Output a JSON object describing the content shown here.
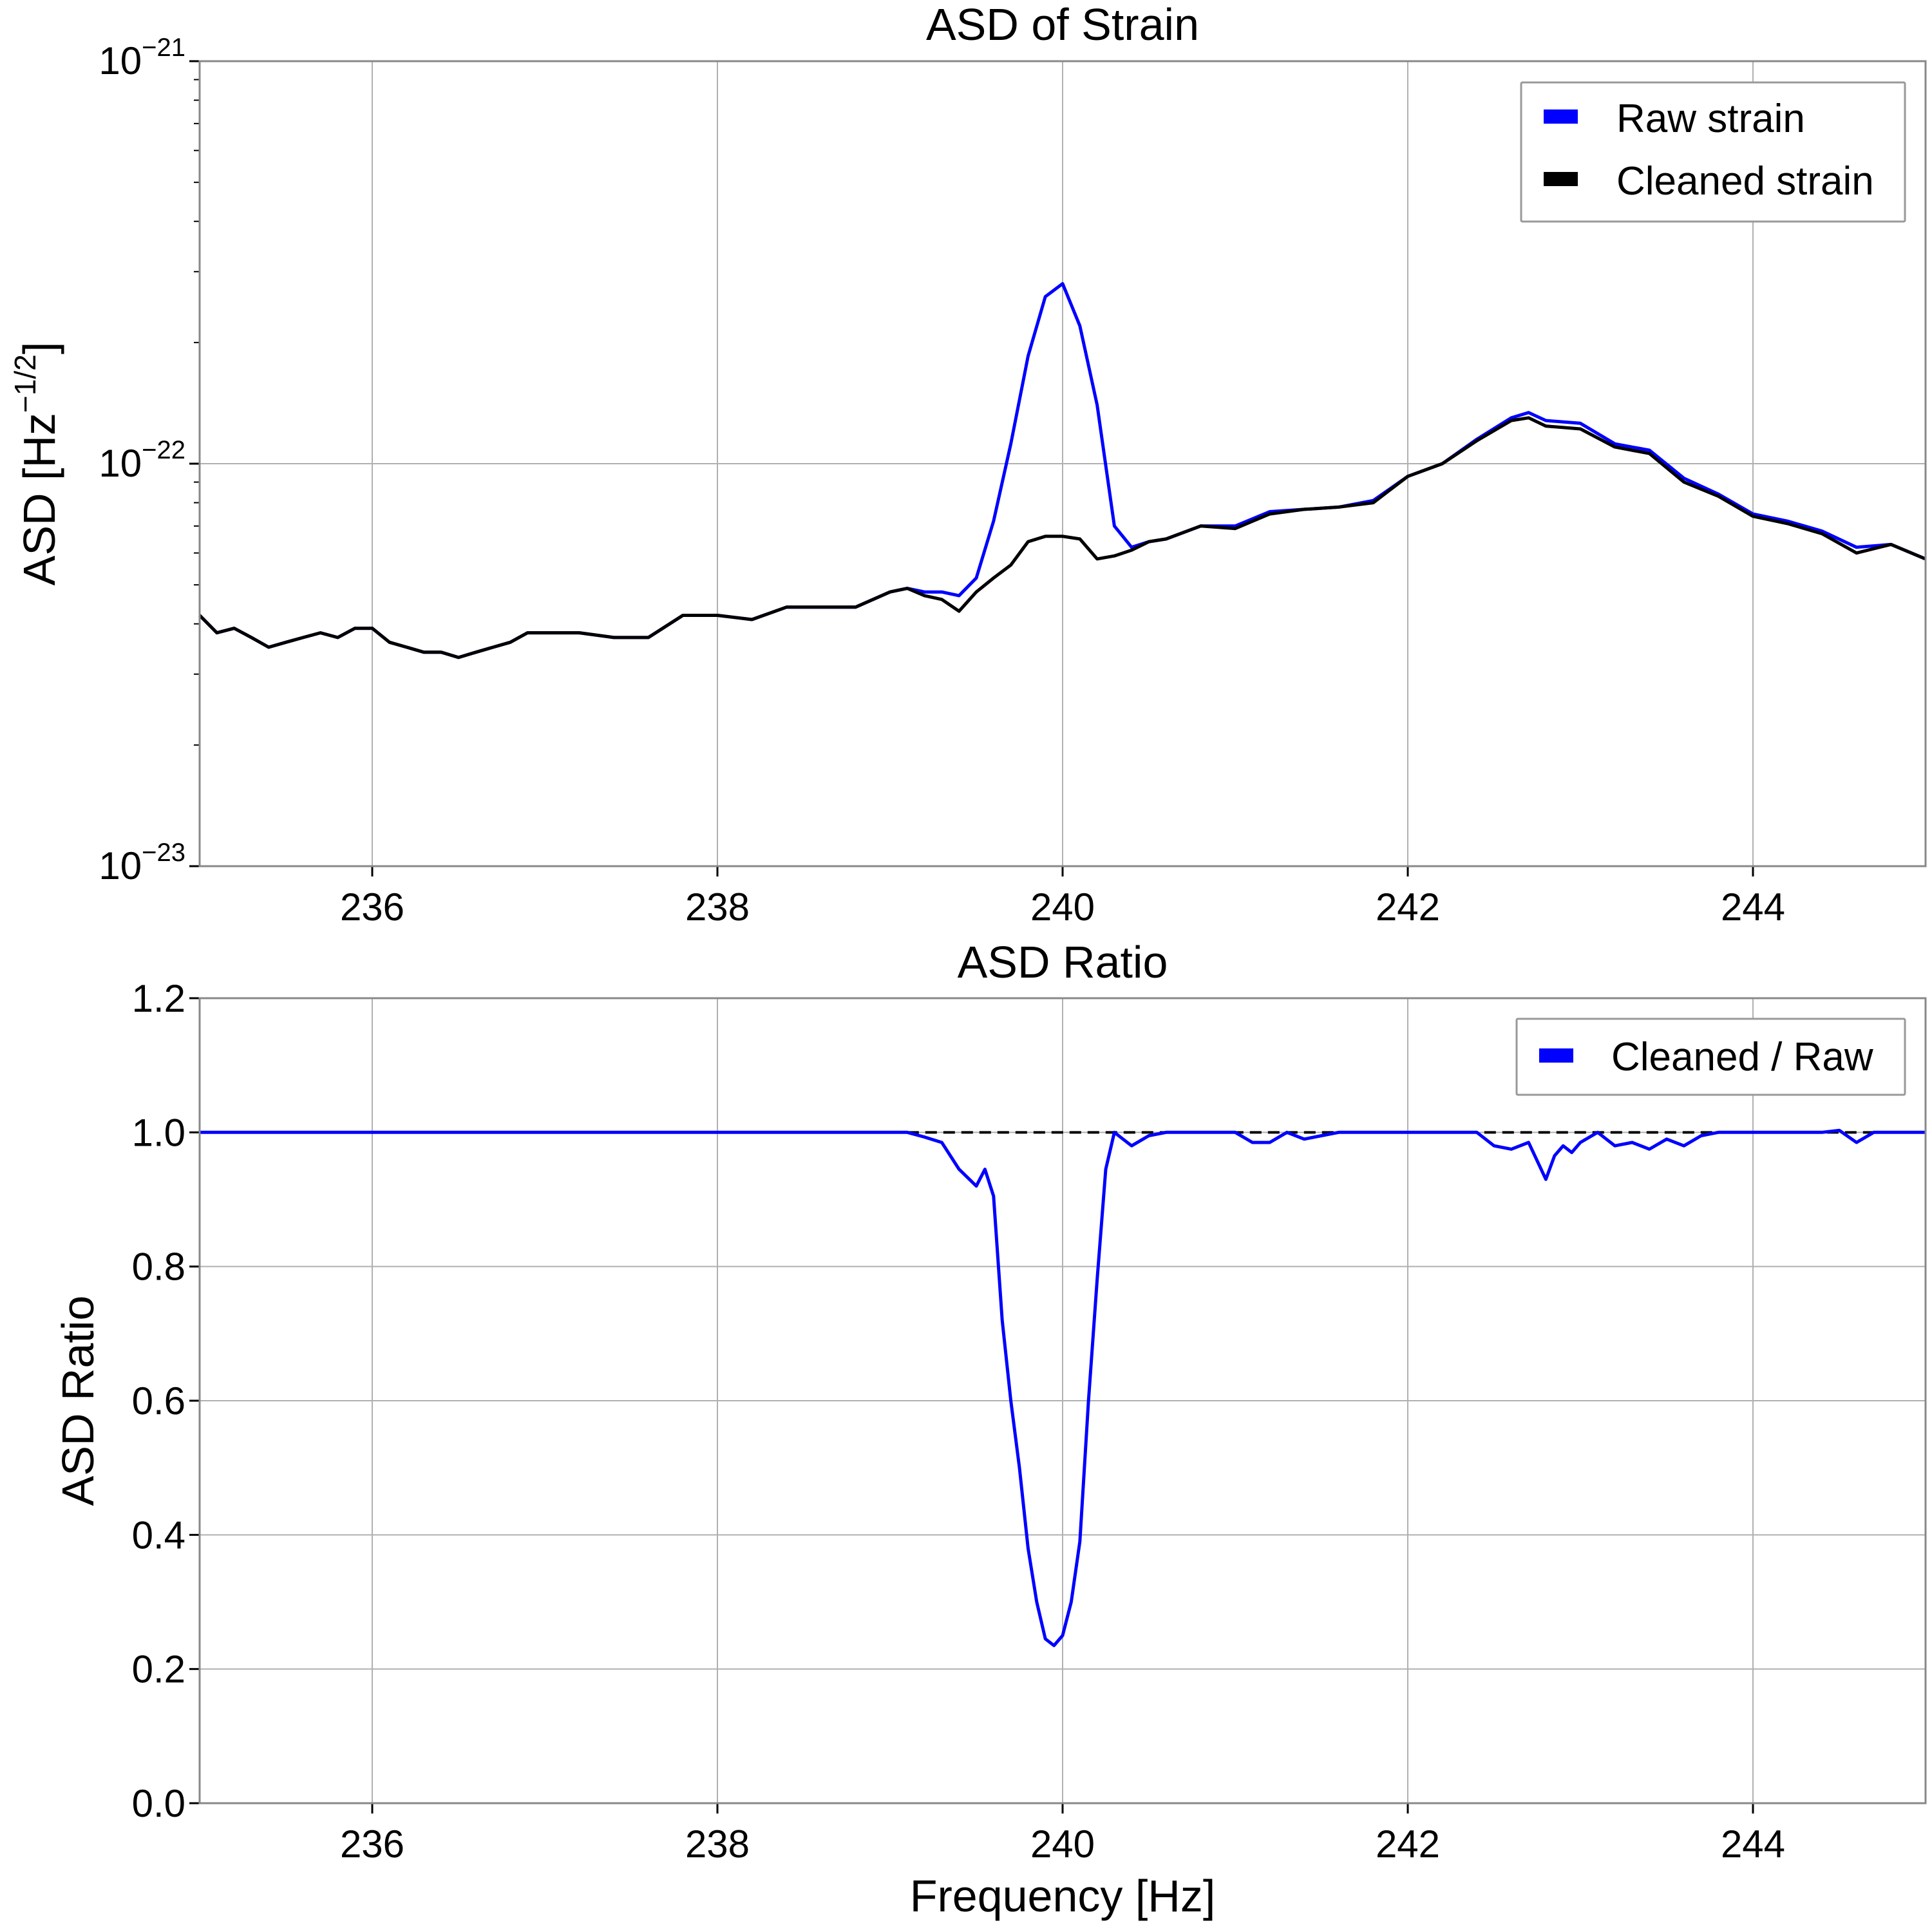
{
  "chart_data": [
    {
      "type": "line",
      "title": "ASD of Strain",
      "xlabel": "",
      "ylabel": "ASD [Hz",
      "ylabel_sup": "−1/2",
      "ylabel_close": "]",
      "xlim": [
        235,
        245
      ],
      "ylim": [
        1e-23,
        1e-21
      ],
      "yscale": "log",
      "grid": true,
      "legend_position": "top-right",
      "x_ticks": [
        236,
        238,
        240,
        242,
        244
      ],
      "x_tick_labels": [
        "236",
        "238",
        "240",
        "242",
        "244"
      ],
      "y_ticks": [
        1e-23,
        1e-22,
        1e-21
      ],
      "y_tick_labels": [
        {
          "base": "10",
          "exp": "−23"
        },
        {
          "base": "10",
          "exp": "−22"
        },
        {
          "base": "10",
          "exp": "−21"
        }
      ],
      "series": [
        {
          "name": "Raw strain",
          "color": "#0000ff",
          "x": [
            235,
            235.1,
            235.2,
            235.3,
            235.4,
            235.5,
            235.6,
            235.7,
            235.8,
            235.9,
            236,
            236.1,
            236.2,
            236.3,
            236.4,
            236.5,
            236.6,
            236.7,
            236.8,
            236.9,
            237,
            237.2,
            237.4,
            237.6,
            237.8,
            238,
            238.2,
            238.4,
            238.6,
            238.8,
            239,
            239.1,
            239.2,
            239.3,
            239.4,
            239.5,
            239.6,
            239.7,
            239.8,
            239.9,
            240,
            240.1,
            240.2,
            240.3,
            240.4,
            240.5,
            240.6,
            240.8,
            241,
            241.2,
            241.4,
            241.6,
            241.8,
            242,
            242.2,
            242.4,
            242.6,
            242.7,
            242.8,
            243,
            243.2,
            243.4,
            243.6,
            243.8,
            244,
            244.2,
            244.4,
            244.6,
            244.8,
            245
          ],
          "y": [
            4.2e-23,
            3.8e-23,
            3.9e-23,
            3.7e-23,
            3.5e-23,
            3.6e-23,
            3.7e-23,
            3.8e-23,
            3.7e-23,
            3.9e-23,
            3.9e-23,
            3.6e-23,
            3.5e-23,
            3.4e-23,
            3.4e-23,
            3.3e-23,
            3.4e-23,
            3.5e-23,
            3.6e-23,
            3.8e-23,
            3.8e-23,
            3.8e-23,
            3.7e-23,
            3.7e-23,
            4.2e-23,
            4.2e-23,
            4.1e-23,
            4.4e-23,
            4.4e-23,
            4.4e-23,
            4.8e-23,
            4.9e-23,
            4.8e-23,
            4.8e-23,
            4.7e-23,
            5.2e-23,
            7.2e-23,
            1.12e-22,
            1.85e-22,
            2.6e-22,
            2.8e-22,
            2.2e-22,
            1.4e-22,
            7e-23,
            6.2e-23,
            6.4e-23,
            6.5e-23,
            7e-23,
            7e-23,
            7.6e-23,
            7.7e-23,
            7.8e-23,
            8.1e-23,
            9.3e-23,
            1e-22,
            1.15e-22,
            1.3e-22,
            1.34e-22,
            1.28e-22,
            1.26e-22,
            1.12e-22,
            1.08e-22,
            9.2e-23,
            8.4e-23,
            7.5e-23,
            7.2e-23,
            6.8e-23,
            6.2e-23,
            6.3e-23,
            5.8e-23
          ]
        },
        {
          "name": "Cleaned strain",
          "color": "#000000",
          "x": [
            235,
            235.1,
            235.2,
            235.3,
            235.4,
            235.5,
            235.6,
            235.7,
            235.8,
            235.9,
            236,
            236.1,
            236.2,
            236.3,
            236.4,
            236.5,
            236.6,
            236.7,
            236.8,
            236.9,
            237,
            237.2,
            237.4,
            237.6,
            237.8,
            238,
            238.2,
            238.4,
            238.6,
            238.8,
            239,
            239.1,
            239.2,
            239.3,
            239.4,
            239.5,
            239.6,
            239.7,
            239.8,
            239.9,
            240,
            240.1,
            240.2,
            240.3,
            240.4,
            240.5,
            240.6,
            240.8,
            241,
            241.2,
            241.4,
            241.6,
            241.8,
            242,
            242.2,
            242.4,
            242.6,
            242.7,
            242.8,
            243,
            243.2,
            243.4,
            243.6,
            243.8,
            244,
            244.2,
            244.4,
            244.6,
            244.8,
            245
          ],
          "y": [
            4.2e-23,
            3.8e-23,
            3.9e-23,
            3.7e-23,
            3.5e-23,
            3.6e-23,
            3.7e-23,
            3.8e-23,
            3.7e-23,
            3.9e-23,
            3.9e-23,
            3.6e-23,
            3.5e-23,
            3.4e-23,
            3.4e-23,
            3.3e-23,
            3.4e-23,
            3.5e-23,
            3.6e-23,
            3.8e-23,
            3.8e-23,
            3.8e-23,
            3.7e-23,
            3.7e-23,
            4.2e-23,
            4.2e-23,
            4.1e-23,
            4.4e-23,
            4.4e-23,
            4.4e-23,
            4.8e-23,
            4.9e-23,
            4.7e-23,
            4.6e-23,
            4.3e-23,
            4.8e-23,
            5.2e-23,
            5.6e-23,
            6.4e-23,
            6.6e-23,
            6.6e-23,
            6.5e-23,
            5.8e-23,
            5.9e-23,
            6.1e-23,
            6.4e-23,
            6.5e-23,
            7e-23,
            6.9e-23,
            7.5e-23,
            7.7e-23,
            7.8e-23,
            8e-23,
            9.3e-23,
            1e-22,
            1.14e-22,
            1.28e-22,
            1.3e-22,
            1.24e-22,
            1.22e-22,
            1.1e-22,
            1.06e-22,
            9e-23,
            8.3e-23,
            7.4e-23,
            7.1e-23,
            6.7e-23,
            6e-23,
            6.3e-23,
            5.8e-23
          ]
        }
      ]
    },
    {
      "type": "line",
      "title": "ASD Ratio",
      "xlabel": "Frequency [Hz]",
      "ylabel": "ASD Ratio",
      "xlim": [
        235,
        245
      ],
      "ylim": [
        0.0,
        1.2
      ],
      "grid": true,
      "legend_position": "top-right",
      "x_ticks": [
        236,
        238,
        240,
        242,
        244
      ],
      "x_tick_labels": [
        "236",
        "238",
        "240",
        "242",
        "244"
      ],
      "y_ticks": [
        0.0,
        0.2,
        0.4,
        0.6,
        0.8,
        1.0,
        1.2
      ],
      "y_tick_labels": [
        "0.0",
        "0.2",
        "0.4",
        "0.6",
        "0.8",
        "1.0",
        "1.2"
      ],
      "reference_line": {
        "y": 1.0,
        "color": "#000000",
        "style": "dashed",
        "x_start": 239.1,
        "x_end": 245
      },
      "series": [
        {
          "name": "Cleaned / Raw",
          "color": "#0000ff",
          "x": [
            235,
            239.1,
            239.2,
            239.3,
            239.4,
            239.5,
            239.55,
            239.6,
            239.65,
            239.7,
            239.75,
            239.8,
            239.85,
            239.9,
            239.95,
            240,
            240.05,
            240.1,
            240.15,
            240.2,
            240.25,
            240.3,
            240.35,
            240.4,
            240.5,
            240.6,
            240.7,
            240.8,
            241,
            241.1,
            241.2,
            241.3,
            241.4,
            241.5,
            241.6,
            241.7,
            242,
            242.4,
            242.5,
            242.6,
            242.7,
            242.8,
            242.85,
            242.9,
            242.95,
            243,
            243.1,
            243.2,
            243.3,
            243.4,
            243.5,
            243.6,
            243.7,
            243.8,
            243.9,
            244,
            244.4,
            244.5,
            244.6,
            244.7,
            245
          ],
          "y": [
            1.0,
            1.0,
            0.993,
            0.985,
            0.945,
            0.92,
            0.945,
            0.905,
            0.72,
            0.6,
            0.5,
            0.38,
            0.3,
            0.245,
            0.235,
            0.25,
            0.3,
            0.39,
            0.6,
            0.78,
            0.945,
            1.0,
            0.99,
            0.98,
            0.995,
            1.0,
            1.0,
            1.0,
            1.0,
            0.985,
            0.985,
            1.0,
            0.99,
            0.995,
            1.0,
            1.0,
            1.0,
            1.0,
            0.98,
            0.975,
            0.985,
            0.93,
            0.965,
            0.98,
            0.97,
            0.985,
            1.0,
            0.98,
            0.985,
            0.975,
            0.99,
            0.98,
            0.995,
            1.0,
            1.0,
            1.0,
            1.0,
            1.003,
            0.985,
            1.0,
            1.0
          ]
        }
      ]
    }
  ]
}
